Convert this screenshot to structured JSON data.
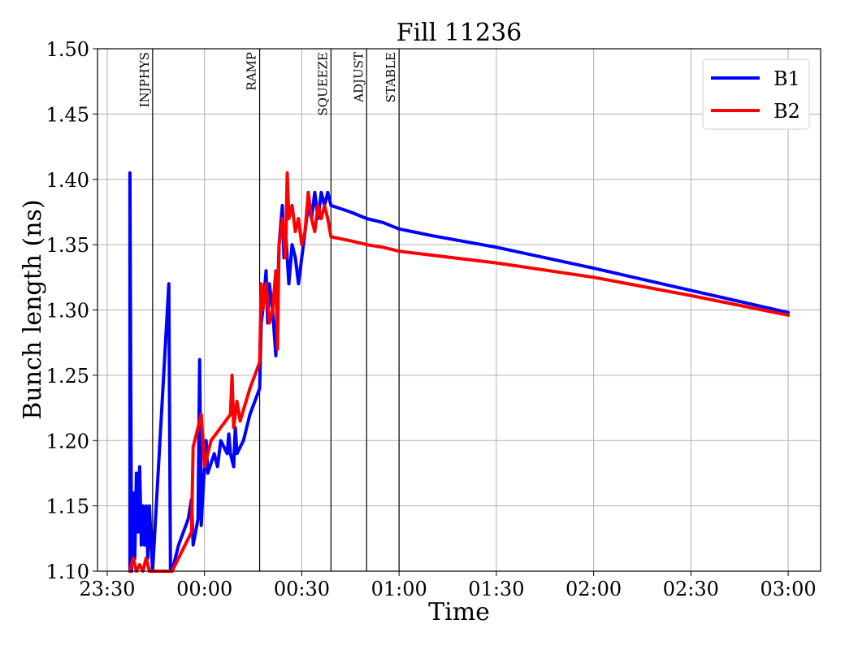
{
  "chart_data": {
    "type": "line",
    "title": "Fill 11236",
    "xlabel": "Time",
    "ylabel": "Bunch length (ns)",
    "x_unit": "time of day (HH:MM), spanning 23:30 to 03:00 across midnight",
    "xlim": [
      "23:27",
      "03:10"
    ],
    "ylim": [
      1.1,
      1.5
    ],
    "x_ticks": [
      "23:30",
      "00:00",
      "00:30",
      "01:00",
      "01:30",
      "02:00",
      "02:30",
      "03:00"
    ],
    "y_ticks": [
      "1.10",
      "1.15",
      "1.20",
      "1.25",
      "1.30",
      "1.35",
      "1.40",
      "1.45",
      "1.50"
    ],
    "grid": true,
    "legend_position": "top-right",
    "phases": [
      {
        "label": "INJPHYS",
        "time": "23:44"
      },
      {
        "label": "RAMP",
        "time": "00:17"
      },
      {
        "label": "SQUEEZE",
        "time": "00:39"
      },
      {
        "label": "ADJUST",
        "time": "00:50"
      },
      {
        "label": "STABLE",
        "time": "01:00"
      }
    ],
    "series": [
      {
        "name": "B1",
        "color": "#0000ff",
        "points": [
          [
            "23:37",
            1.1
          ],
          [
            "23:37",
            1.405
          ],
          [
            "23:37.5",
            1.1
          ],
          [
            "23:38",
            1.16
          ],
          [
            "23:38.5",
            1.11
          ],
          [
            "23:39",
            1.175
          ],
          [
            "23:39.5",
            1.13
          ],
          [
            "23:40",
            1.18
          ],
          [
            "23:40.5",
            1.12
          ],
          [
            "23:41",
            1.15
          ],
          [
            "23:41.5",
            1.12
          ],
          [
            "23:42",
            1.15
          ],
          [
            "23:42.5",
            1.11
          ],
          [
            "23:43",
            1.15
          ],
          [
            "23:44",
            1.1
          ],
          [
            "23:49",
            1.32
          ],
          [
            "23:49.5",
            1.1
          ],
          [
            "23:50",
            1.1
          ],
          [
            "23:52",
            1.12
          ],
          [
            "23:55",
            1.14
          ],
          [
            "23:56",
            1.155
          ],
          [
            "23:56.5",
            1.12
          ],
          [
            "23:58",
            1.14
          ],
          [
            "23:58.5",
            1.262
          ],
          [
            "23:59",
            1.135
          ],
          [
            "23:59.5",
            1.16
          ],
          [
            "00:00.5",
            1.2
          ],
          [
            "00:01",
            1.175
          ],
          [
            "00:03",
            1.19
          ],
          [
            "00:04",
            1.18
          ],
          [
            "00:05",
            1.2
          ],
          [
            "00:07",
            1.19
          ],
          [
            "00:07.5",
            1.205
          ],
          [
            "00:08",
            1.19
          ],
          [
            "00:09",
            1.18
          ],
          [
            "00:09.5",
            1.21
          ],
          [
            "00:10",
            1.19
          ],
          [
            "00:12",
            1.2
          ],
          [
            "00:14",
            1.22
          ],
          [
            "00:17",
            1.24
          ],
          [
            "00:17.5",
            1.29
          ],
          [
            "00:18",
            1.3
          ],
          [
            "00:19",
            1.33
          ],
          [
            "00:19.5",
            1.29
          ],
          [
            "00:20",
            1.32
          ],
          [
            "00:21",
            1.3
          ],
          [
            "00:22",
            1.265
          ],
          [
            "00:23",
            1.35
          ],
          [
            "00:24",
            1.38
          ],
          [
            "00:24.5",
            1.34
          ],
          [
            "00:25",
            1.36
          ],
          [
            "00:26",
            1.32
          ],
          [
            "00:27",
            1.35
          ],
          [
            "00:28",
            1.34
          ],
          [
            "00:29",
            1.32
          ],
          [
            "00:30",
            1.34
          ],
          [
            "00:31",
            1.36
          ],
          [
            "00:32",
            1.38
          ],
          [
            "00:33",
            1.37
          ],
          [
            "00:34",
            1.39
          ],
          [
            "00:35",
            1.37
          ],
          [
            "00:36",
            1.39
          ],
          [
            "00:37",
            1.38
          ],
          [
            "00:38",
            1.39
          ],
          [
            "00:39",
            1.38
          ],
          [
            "00:45",
            1.375
          ],
          [
            "00:50",
            1.37
          ],
          [
            "00:55",
            1.367
          ],
          [
            "01:00",
            1.362
          ],
          [
            "01:10",
            1.357
          ],
          [
            "01:30",
            1.348
          ],
          [
            "02:00",
            1.332
          ],
          [
            "02:30",
            1.315
          ],
          [
            "03:00",
            1.298
          ]
        ]
      },
      {
        "name": "B2",
        "color": "#ff0000",
        "points": [
          [
            "23:37",
            1.1
          ],
          [
            "23:38",
            1.11
          ],
          [
            "23:39",
            1.1
          ],
          [
            "23:40",
            1.105
          ],
          [
            "23:41",
            1.1
          ],
          [
            "23:42",
            1.11
          ],
          [
            "23:43",
            1.1
          ],
          [
            "23:50",
            1.1
          ],
          [
            "23:56",
            1.13
          ],
          [
            "23:56.5",
            1.195
          ],
          [
            "23:57",
            1.2
          ],
          [
            "23:58",
            1.21
          ],
          [
            "23:59",
            1.22
          ],
          [
            "00:00",
            1.18
          ],
          [
            "00:02",
            1.2
          ],
          [
            "00:05",
            1.21
          ],
          [
            "00:08",
            1.22
          ],
          [
            "00:08.5",
            1.25
          ],
          [
            "00:09",
            1.21
          ],
          [
            "00:10",
            1.23
          ],
          [
            "00:11",
            1.215
          ],
          [
            "00:14",
            1.24
          ],
          [
            "00:17",
            1.26
          ],
          [
            "00:17.5",
            1.32
          ],
          [
            "00:18",
            1.3
          ],
          [
            "00:19",
            1.32
          ],
          [
            "00:20",
            1.29
          ],
          [
            "00:21",
            1.3
          ],
          [
            "00:22",
            1.33
          ],
          [
            "00:22.5",
            1.27
          ],
          [
            "00:23",
            1.35
          ],
          [
            "00:24",
            1.37
          ],
          [
            "00:25",
            1.34
          ],
          [
            "00:25.5",
            1.405
          ],
          [
            "00:26",
            1.37
          ],
          [
            "00:27",
            1.38
          ],
          [
            "00:28",
            1.36
          ],
          [
            "00:29",
            1.37
          ],
          [
            "00:30",
            1.35
          ],
          [
            "00:31",
            1.36
          ],
          [
            "00:32",
            1.39
          ],
          [
            "00:33",
            1.37
          ],
          [
            "00:34",
            1.36
          ],
          [
            "00:35",
            1.38
          ],
          [
            "00:36",
            1.37
          ],
          [
            "00:37",
            1.38
          ],
          [
            "00:38",
            1.37
          ],
          [
            "00:39",
            1.356
          ],
          [
            "00:45",
            1.353
          ],
          [
            "00:50",
            1.35
          ],
          [
            "00:55",
            1.348
          ],
          [
            "01:00",
            1.345
          ],
          [
            "01:10",
            1.342
          ],
          [
            "01:30",
            1.336
          ],
          [
            "02:00",
            1.325
          ],
          [
            "02:30",
            1.311
          ],
          [
            "03:00",
            1.296
          ]
        ]
      }
    ]
  }
}
